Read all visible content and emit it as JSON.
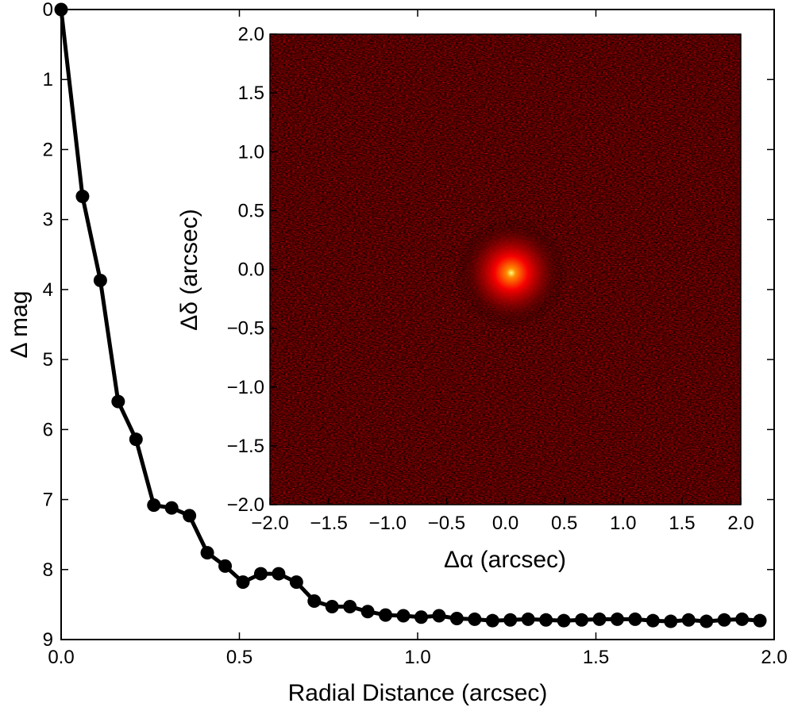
{
  "chart_data": [
    {
      "type": "line",
      "name": "contrast-curve",
      "xlabel": "Radial Distance (arcsec)",
      "ylabel": "Δ mag",
      "xlim": [
        0.0,
        2.0
      ],
      "ylim": [
        9,
        0
      ],
      "y_inverted": true,
      "x_ticks": [
        "0.0",
        "0.5",
        "1.0",
        "1.5",
        "2.0"
      ],
      "y_ticks": [
        "0",
        "1",
        "2",
        "3",
        "4",
        "5",
        "6",
        "7",
        "8",
        "9"
      ],
      "grid": false,
      "series": [
        {
          "name": "Δ mag",
          "color": "#000000",
          "marker": "circle",
          "x": [
            0.0,
            0.06,
            0.11,
            0.16,
            0.21,
            0.26,
            0.31,
            0.36,
            0.41,
            0.46,
            0.51,
            0.56,
            0.61,
            0.66,
            0.71,
            0.76,
            0.81,
            0.86,
            0.91,
            0.96,
            1.01,
            1.06,
            1.11,
            1.16,
            1.21,
            1.26,
            1.31,
            1.36,
            1.41,
            1.46,
            1.51,
            1.56,
            1.61,
            1.66,
            1.71,
            1.76,
            1.81,
            1.86,
            1.91,
            1.96
          ],
          "values": [
            0.0,
            2.67,
            3.87,
            5.6,
            6.14,
            7.08,
            7.12,
            7.23,
            7.76,
            7.95,
            8.18,
            8.06,
            8.06,
            8.18,
            8.45,
            8.53,
            8.53,
            8.6,
            8.65,
            8.66,
            8.68,
            8.66,
            8.7,
            8.71,
            8.73,
            8.72,
            8.71,
            8.72,
            8.73,
            8.72,
            8.71,
            8.71,
            8.71,
            8.73,
            8.74,
            8.72,
            8.74,
            8.72,
            8.71,
            8.73
          ]
        }
      ]
    },
    {
      "type": "heatmap",
      "name": "inset-image",
      "xlabel": "Δα (arcsec)",
      "ylabel": "Δδ (arcsec)",
      "xlim": [
        -2.0,
        2.0
      ],
      "ylim": [
        -2.0,
        2.0
      ],
      "x_ticks": [
        "−2.0",
        "−1.5",
        "−1.0",
        "−0.5",
        "0.0",
        "0.5",
        "1.0",
        "1.5",
        "2.0"
      ],
      "y_ticks": [
        "−2.0",
        "−1.5",
        "−1.0",
        "−0.5",
        "0.0",
        "0.5",
        "1.0",
        "1.5",
        "2.0"
      ],
      "colormap": [
        "#000000",
        "#8b0000",
        "#ff0000",
        "#ff8c00",
        "#ffff80"
      ],
      "source": {
        "x": 0.05,
        "y": -0.03,
        "fwhm": 0.5
      }
    }
  ]
}
